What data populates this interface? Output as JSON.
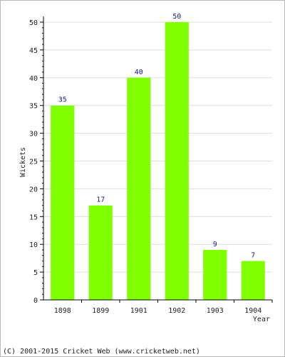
{
  "chart_data": {
    "type": "bar",
    "categories": [
      "1898",
      "1899",
      "1901",
      "1902",
      "1903",
      "1904"
    ],
    "values": [
      35,
      17,
      40,
      50,
      9,
      7
    ],
    "data_labels": [
      "35",
      "17",
      "40",
      "50",
      "9",
      "7"
    ],
    "xlabel": "Year",
    "ylabel": "Wickets",
    "ylim": [
      0,
      50
    ],
    "yticks": [
      "0",
      "5",
      "10",
      "15",
      "20",
      "25",
      "30",
      "35",
      "40",
      "45",
      "50"
    ],
    "grid": true,
    "legend": "none",
    "colors": {
      "bar": "#80ff00",
      "grid": "#dddddd",
      "axis": "#000000",
      "label": "#1a1a8c"
    }
  },
  "footer": {
    "copyright": "(C) 2001-2015 Cricket Web (www.cricketweb.net)"
  }
}
